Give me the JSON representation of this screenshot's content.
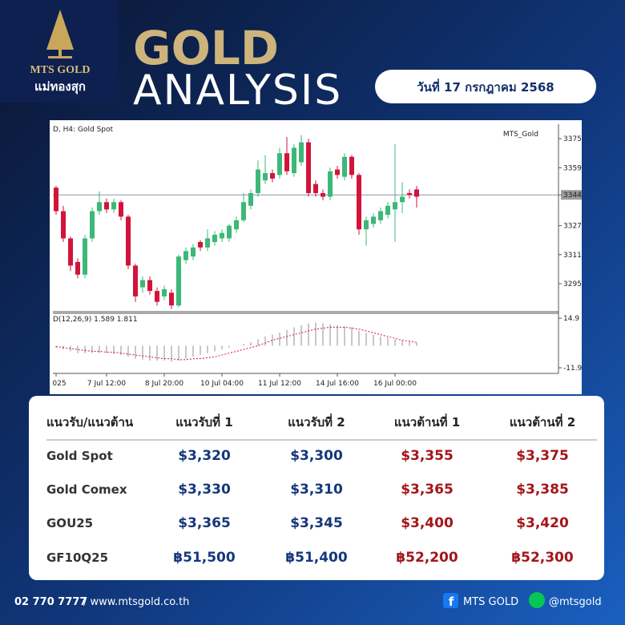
{
  "header": {
    "logo_name": "MTS GOLD",
    "logo_thai": "แม่ทองสุก",
    "title_line1": "GOLD",
    "title_line2": "ANALYSIS",
    "date": "วันที่ 17 กรกฎาคม 2568"
  },
  "chart_data": [
    {
      "type": "candlestick",
      "title": "D, H4:  Gold Spot",
      "watermark": "MTS_Gold",
      "categories": [
        "025",
        null,
        null,
        null,
        null,
        null,
        null,
        "7 Jul 12:00",
        null,
        null,
        null,
        null,
        null,
        null,
        null,
        "8 Jul 20:00",
        null,
        null,
        null,
        null,
        null,
        null,
        null,
        "10 Jul 04:00",
        null,
        null,
        null,
        null,
        null,
        null,
        null,
        "11 Jul 12:00",
        null,
        null,
        null,
        null,
        null,
        null,
        null,
        "14 Jul 16:00",
        null,
        null,
        null,
        null,
        null,
        null,
        null,
        "16 Jul 00:00",
        null,
        null,
        null
      ],
      "open": [
        3348,
        3335,
        3320,
        3307,
        3300,
        3320,
        3335,
        3340,
        3336,
        3340,
        3332,
        3305,
        3293,
        3297,
        3291,
        3288,
        3290,
        3283,
        3308,
        3310,
        3318,
        3315,
        3318,
        3320,
        3320,
        3325,
        3330,
        3338,
        3345,
        3352,
        3356,
        3355,
        3367,
        3356,
        3362,
        3373,
        3350,
        3345,
        3343,
        3358,
        3354,
        3365,
        3355,
        3325,
        3328,
        3330,
        3333,
        3336,
        3340,
        3345,
        3347
      ],
      "high": [
        3349,
        3338,
        3321,
        3309,
        3322,
        3337,
        3346,
        3342,
        3342,
        3341,
        3333,
        3306,
        3299,
        3299,
        3293,
        3294,
        3292,
        3311,
        3315,
        3317,
        3319,
        3325,
        3324,
        3325,
        3328,
        3332,
        3345,
        3347,
        3363,
        3366,
        3358,
        3370,
        3376,
        3372,
        3377,
        3375,
        3352,
        3347,
        3359,
        3360,
        3367,
        3366,
        3356,
        3332,
        3334,
        3337,
        3340,
        3372,
        3351,
        3347,
        3349
      ],
      "low": [
        3333,
        3318,
        3302,
        3298,
        3298,
        3318,
        3333,
        3334,
        3334,
        3330,
        3303,
        3285,
        3290,
        3289,
        3283,
        3286,
        3281,
        3282,
        3306,
        3308,
        3313,
        3313,
        3316,
        3318,
        3318,
        3323,
        3329,
        3336,
        3343,
        3350,
        3351,
        3353,
        3355,
        3354,
        3360,
        3343,
        3343,
        3341,
        3341,
        3353,
        3352,
        3353,
        3322,
        3316,
        3326,
        3328,
        3331,
        3318,
        3334,
        3342,
        3337
      ],
      "close": [
        3335,
        3320,
        3305,
        3300,
        3320,
        3335,
        3340,
        3336,
        3340,
        3332,
        3305,
        3288,
        3297,
        3291,
        3285,
        3292,
        3283,
        3310,
        3313,
        3315,
        3315,
        3320,
        3322,
        3323,
        3327,
        3330,
        3340,
        3345,
        3358,
        3356,
        3353,
        3367,
        3357,
        3370,
        3373,
        3345,
        3345,
        3343,
        3357,
        3355,
        3365,
        3355,
        3325,
        3330,
        3332,
        3335,
        3338,
        3340,
        3343,
        3344,
        3343
      ],
      "up_color": "#3cb878",
      "down_color": "#d2143a",
      "price_line": 3344,
      "ylim": [
        3280,
        3383
      ],
      "yticks": [
        3375,
        3359,
        3344,
        3327,
        3311,
        3295
      ]
    },
    {
      "type": "macd",
      "title": "D(12,26,9) 1.589 1.811",
      "values": [
        -1,
        -2,
        -3,
        -4,
        -4,
        -4,
        -4,
        -4,
        -4.5,
        -5,
        -6,
        -7,
        -7.5,
        -8,
        -8,
        -8,
        -8.5,
        -8,
        -7,
        -6,
        -5,
        -4,
        -3,
        -2,
        -1,
        0,
        1,
        2,
        3.5,
        5,
        6,
        7,
        8.5,
        10,
        11,
        12,
        12.5,
        12,
        11.5,
        11,
        10.5,
        10,
        8,
        7,
        6,
        5,
        4.5,
        3.5,
        3,
        2.2,
        1.6
      ],
      "signal": [
        -0.5,
        -1,
        -1.5,
        -2,
        -2.5,
        -3,
        -3,
        -3.5,
        -3.5,
        -4,
        -4.5,
        -5,
        -5.5,
        -6,
        -6.5,
        -7,
        -7,
        -7.5,
        -7.5,
        -7,
        -7,
        -6.5,
        -6,
        -5,
        -4,
        -3,
        -2,
        -1,
        0,
        1.5,
        3,
        4,
        5,
        6,
        7,
        8,
        9,
        9.5,
        10,
        10,
        10,
        9.5,
        9,
        8,
        7,
        6,
        5,
        4,
        3,
        2.5,
        1.8
      ],
      "color": "#c8c8c8",
      "signal_color": "#d2143a",
      "ylim": [
        -14.5,
        17.1
      ],
      "yticks": [
        14.9,
        -11.9
      ]
    }
  ],
  "table": {
    "header": [
      "แนวรับ/แนวต้าน",
      "แนวรับที่ 1",
      "แนวรับที่ 2",
      "แนวต้านที่ 1",
      "แนวต้านที่ 2"
    ],
    "rows": [
      [
        "Gold Spot",
        "$3,320",
        "$3,300",
        "$3,355",
        "$3,375"
      ],
      [
        "Gold Comex",
        "$3,330",
        "$3,310",
        "$3,365",
        "$3,385"
      ],
      [
        "GOU25",
        "$3,365",
        "$3,345",
        "$3,400",
        "$3,420"
      ],
      [
        "GF10Q25",
        "฿51,500",
        "฿51,400",
        "฿52,200",
        "฿52,300"
      ]
    ]
  },
  "footer": {
    "phone": "02 770 7777",
    "website": "/ www.mtsgold.co.th",
    "facebook": "MTS GOLD",
    "line": "@mtsgold"
  }
}
